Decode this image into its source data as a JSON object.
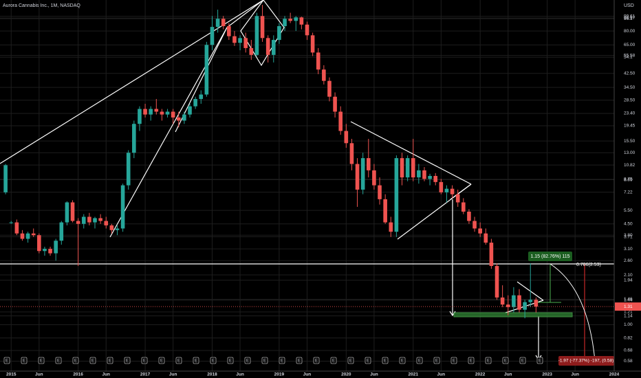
{
  "chart_data": {
    "type": "candlestick",
    "title": "Aurora Cannabis Inc., 1M, NASDAQ",
    "currency": "USD",
    "log_scale": true,
    "grid": true,
    "up_color": "#26a69a",
    "down_color": "#ef5350",
    "x": [
      "2014-12",
      "2015-01",
      "2015-02",
      "2015-03",
      "2015-04",
      "2015-05",
      "2015-06",
      "2015-07",
      "2015-08",
      "2015-09",
      "2015-10",
      "2015-11",
      "2015-12",
      "2016-01",
      "2016-02",
      "2016-03",
      "2016-04",
      "2016-05",
      "2016-06",
      "2016-07",
      "2016-08",
      "2016-09",
      "2016-10",
      "2016-11",
      "2016-12",
      "2017-01",
      "2017-02",
      "2017-03",
      "2017-04",
      "2017-05",
      "2017-06",
      "2017-07",
      "2017-08",
      "2017-09",
      "2017-10",
      "2017-11",
      "2017-12",
      "2018-01",
      "2018-02",
      "2018-03",
      "2018-04",
      "2018-05",
      "2018-06",
      "2018-07",
      "2018-08",
      "2018-09",
      "2018-10",
      "2018-11",
      "2018-12",
      "2019-01",
      "2019-02",
      "2019-03",
      "2019-04",
      "2019-05",
      "2019-06",
      "2019-07",
      "2019-08",
      "2019-09",
      "2019-10",
      "2019-11",
      "2019-12",
      "2020-01",
      "2020-02",
      "2020-03",
      "2020-04",
      "2020-05",
      "2020-06",
      "2020-07",
      "2020-08",
      "2020-09",
      "2020-10",
      "2020-11",
      "2020-12",
      "2021-01",
      "2021-02",
      "2021-03",
      "2021-04",
      "2021-05",
      "2021-06",
      "2021-07",
      "2021-08",
      "2021-09",
      "2021-10",
      "2021-11",
      "2021-12",
      "2022-01",
      "2022-02",
      "2022-03",
      "2022-04",
      "2022-05",
      "2022-06",
      "2022-07",
      "2022-08",
      "2022-09",
      "2022-10",
      "2022-11"
    ],
    "open": [
      7.2,
      4.6,
      4.6,
      3.9,
      3.6,
      3.9,
      3.8,
      3.0,
      3.1,
      2.9,
      3.5,
      4.6,
      6.2,
      4.7,
      4.5,
      5.0,
      4.6,
      4.9,
      4.7,
      4.4,
      4.1,
      4.2,
      8.0,
      13,
      20,
      25,
      23,
      25,
      24,
      23,
      24,
      22,
      21,
      23,
      26,
      29,
      31,
      65,
      85,
      96,
      86,
      74,
      67,
      72,
      62,
      56,
      100,
      72,
      56,
      70,
      86,
      96,
      93,
      98,
      88,
      75,
      58,
      45,
      38,
      30,
      24,
      18,
      15,
      11,
      7.5,
      12,
      10,
      8,
      6.5,
      4.6,
      4,
      12,
      9,
      12,
      9,
      10,
      8.8,
      9.2,
      8.4,
      7.2,
      7.6,
      7,
      6.2,
      5.4,
      4.7,
      4.2,
      3.9,
      3.4,
      2.4,
      1.5,
      1.35,
      1.3,
      1.55,
      1.25,
      1.4,
      1.45
    ],
    "high": [
      11,
      4.7,
      4.8,
      4.1,
      4.0,
      4.2,
      3.9,
      3.2,
      3.2,
      3.6,
      4.7,
      6.3,
      6.4,
      4.9,
      5.2,
      5.3,
      5.0,
      5.2,
      5.0,
      4.5,
      4.4,
      8.2,
      13.5,
      21,
      26,
      27,
      26,
      29,
      25,
      25,
      25,
      24,
      24,
      27,
      30,
      33,
      68,
      100,
      110,
      100,
      90,
      80,
      75,
      78,
      70,
      105,
      118,
      75,
      75,
      90,
      100,
      105,
      100,
      99,
      92,
      78,
      62,
      48,
      40,
      32,
      26,
      20,
      16,
      12,
      13,
      16,
      11,
      9,
      7,
      5,
      12.5,
      13,
      12.5,
      16,
      11,
      10.5,
      9.5,
      9.6,
      8.8,
      8,
      8,
      7.5,
      6.6,
      5.6,
      5,
      4.6,
      4.2,
      3.6,
      2.5,
      1.8,
      1.55,
      1.75,
      1.7,
      1.45,
      2.5,
      1.5
    ],
    "low": [
      7,
      4.5,
      3.8,
      3.5,
      3.4,
      3.7,
      2.9,
      2.8,
      2.8,
      2.6,
      3.3,
      4.4,
      4.6,
      2.4,
      4.2,
      4.4,
      4.2,
      4.5,
      4.2,
      3.9,
      3.8,
      4.0,
      7.5,
      12,
      18,
      22,
      21,
      23,
      21,
      22,
      20,
      19,
      20,
      22,
      25,
      27,
      30,
      60,
      78,
      82,
      70,
      64,
      60,
      58,
      52,
      55,
      68,
      50,
      50,
      66,
      80,
      90,
      80,
      82,
      70,
      55,
      42,
      36,
      28,
      22,
      17,
      14,
      10,
      5.8,
      7,
      9,
      7.5,
      6,
      4.5,
      3.7,
      3.7,
      8,
      8.5,
      8.5,
      8.2,
      8.5,
      8,
      8,
      7,
      6.2,
      6.6,
      5.8,
      5.2,
      4.5,
      4,
      3.7,
      3.3,
      2.3,
      1.45,
      1.3,
      1.15,
      1.2,
      1.2,
      1.1,
      1.3,
      1.2
    ],
    "close": [
      10.8,
      4.6,
      3.9,
      3.6,
      3.9,
      3.8,
      3.0,
      3.1,
      2.9,
      3.5,
      4.6,
      6.2,
      4.7,
      4.5,
      5.0,
      4.6,
      4.9,
      4.7,
      4.4,
      4.1,
      4.2,
      8.0,
      13,
      20,
      25,
      23,
      25,
      24,
      23,
      24,
      22,
      21,
      23,
      26,
      29,
      31,
      65,
      85,
      96,
      86,
      74,
      67,
      72,
      62,
      56,
      100,
      72,
      56,
      70,
      86,
      96,
      93,
      98,
      88,
      75,
      58,
      45,
      38,
      30,
      24,
      18,
      15,
      11,
      7.5,
      12,
      10,
      8,
      6.5,
      4.6,
      4,
      12,
      9,
      12,
      9,
      10,
      8.8,
      9.2,
      8.4,
      7.2,
      7.6,
      7,
      6.2,
      5.4,
      4.7,
      4.2,
      3.9,
      3.4,
      2.4,
      1.5,
      1.35,
      1.3,
      1.55,
      1.25,
      1.4,
      1.45,
      1.31
    ],
    "last_price": {
      "value": 1.31,
      "label": "1.31"
    },
    "xlim": [
      "2014-11",
      "2024-01"
    ],
    "xticks": [
      {
        "value": "2015-01",
        "label": "2015"
      },
      {
        "value": "2015-06",
        "label": "Jun"
      },
      {
        "value": "2016-01",
        "label": "2016"
      },
      {
        "value": "2016-06",
        "label": "Jun"
      },
      {
        "value": "2017-01",
        "label": "2017"
      },
      {
        "value": "2017-06",
        "label": "Jun"
      },
      {
        "value": "2018-01",
        "label": "2018"
      },
      {
        "value": "2018-06",
        "label": "Jun"
      },
      {
        "value": "2019-01",
        "label": "2019"
      },
      {
        "value": "2019-06",
        "label": "Jun"
      },
      {
        "value": "2020-01",
        "label": "2020"
      },
      {
        "value": "2020-06",
        "label": "Jun"
      },
      {
        "value": "2021-01",
        "label": "2021"
      },
      {
        "value": "2021-06",
        "label": "Jun"
      },
      {
        "value": "2022-01",
        "label": "2022"
      },
      {
        "value": "2022-06",
        "label": "Jun"
      },
      {
        "value": "2023-01",
        "label": "2023"
      },
      {
        "value": "2023-06",
        "label": "Jun"
      },
      {
        "value": "2024-01",
        "label": "2024"
      }
    ],
    "ylim": [
      0.5,
      127
    ],
    "yticks": [
      99.61,
      96.97,
      96.1,
      {
        "value": 80,
        "label": "80.00"
      },
      {
        "value": 65,
        "label": "65.00"
      },
      55.58,
      54.1,
      {
        "value": 42.5,
        "label": "42.50"
      },
      {
        "value": 34.5,
        "label": "34.50"
      },
      {
        "value": 28.5,
        "label": "28.50"
      },
      {
        "value": 23.4,
        "label": "23.40"
      },
      19.45,
      {
        "value": 15.5,
        "label": "15.50"
      },
      {
        "value": 13,
        "label": "13.00"
      },
      10.82,
      8.75,
      8.69,
      7.22,
      {
        "value": 5.5,
        "label": "5.50"
      },
      {
        "value": 4.5,
        "label": "4.50"
      },
      {
        "value": 3.8,
        "label": "3.80"
      },
      3.71,
      {
        "value": 3.1,
        "label": "3.10"
      },
      {
        "value": 2.6,
        "label": "2.60"
      },
      {
        "value": 2.1,
        "label": "2.10"
      },
      1.94,
      1.46,
      1.44,
      1.21,
      1.14,
      {
        "value": 1,
        "label": "1.00"
      },
      0.82,
      0.68,
      0.58
    ],
    "annotations": [
      "1.15 (82.76%) 115",
      "0.786(2.53)",
      "-1.97 (-77.37%) -197, (0.58)"
    ],
    "events": [
      "E",
      "E",
      "E",
      "E",
      "E",
      "E",
      "E",
      "E",
      "E",
      "E",
      "E",
      "E",
      "E",
      "E",
      "E",
      "E",
      "E",
      "E",
      "E",
      "E",
      "E",
      "E",
      "E",
      "E",
      "E",
      "E",
      "E",
      "E",
      "E",
      "E",
      "E",
      "E"
    ]
  }
}
